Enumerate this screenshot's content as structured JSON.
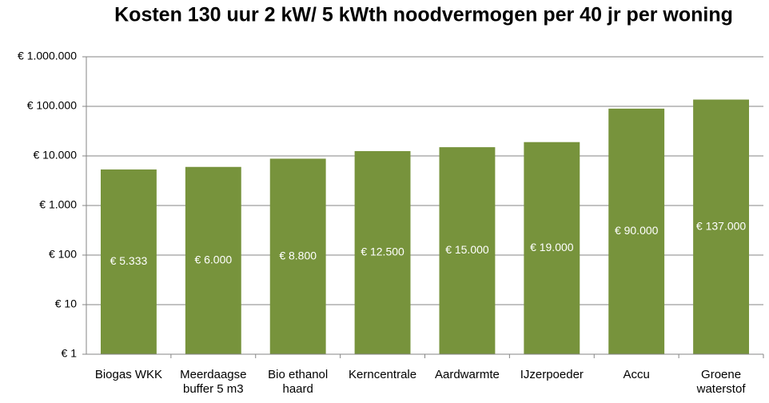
{
  "chart_data": {
    "type": "bar",
    "title": "Kosten 130 uur 2 kW/ 5 kWth noodvermogen per 40 jr per woning",
    "categories": [
      "Biogas WKK",
      "Meerdaagse buffer 5 m3",
      "Bio ethanol haard",
      "Kerncentrale",
      "Aardwarmte",
      "IJzerpoeder",
      "Accu",
      "Groene waterstof"
    ],
    "values": [
      5333,
      6000,
      8800,
      12500,
      15000,
      19000,
      90000,
      137000
    ],
    "value_labels": [
      "€ 5.333",
      "€ 6.000",
      "€ 8.800",
      "€ 12.500",
      "€ 15.000",
      "€ 19.000",
      "€ 90.000",
      "€ 137.000"
    ],
    "color": "#77933c",
    "log_scale": true,
    "ylim": [
      1,
      1000000
    ],
    "yticks": [
      {
        "value": 1,
        "label": "€ 1"
      },
      {
        "value": 10,
        "label": "€ 10"
      },
      {
        "value": 100,
        "label": "€ 100"
      },
      {
        "value": 1000,
        "label": "€ 1.000"
      },
      {
        "value": 10000,
        "label": "€ 10.000"
      },
      {
        "value": 100000,
        "label": "€ 100.000"
      },
      {
        "value": 1000000,
        "label": "€ 1.000.000"
      }
    ],
    "grid": true
  }
}
